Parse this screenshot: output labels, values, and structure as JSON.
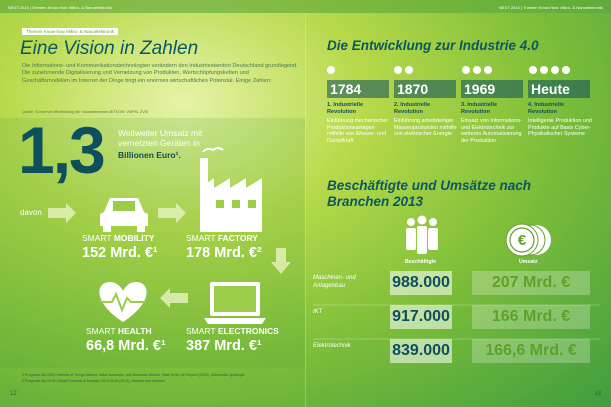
{
  "header": {
    "left": "NEXT 2014 | Themen Know-How: Mikro- & Nanoelektronik",
    "right": "NEXT 2014 | Themen Know-How: Mikro- & Nanoelektronik"
  },
  "left_page": {
    "tag": "Themen Know-how Mikro- & Nanoelektronik",
    "title": "Eine Vision in Zahlen",
    "intro": "Die Informations- und Kommunikationstechnologien verändern den Industriestandort Deutschland grundlegend. Die zunehmende Digitalisierung und Vernetzung von Produkten, Wertschöpfungsketten und Geschäftsmodellen im Internet der Dinge birgt ein enormes wirtschaftliches Potenzial. Einige Zahlen:",
    "source": "Quelle: Sonderveröffentlichung der Industriemedien BITKOM, VMPM, ZVEI",
    "big_number": "1,3",
    "big_text": "Weltweiter Umsatz mit vernetzten Geräten in",
    "big_text_bold": "Billionen Euro¹.",
    "davon": "davon",
    "segments": [
      {
        "label_light": "SMART",
        "label_bold": "MOBILITY",
        "value": "152 Mrd. €¹"
      },
      {
        "label_light": "SMART",
        "label_bold": "FACTORY",
        "value": "178 Mrd. €²"
      },
      {
        "label_light": "SMART",
        "label_bold": "HEALTH",
        "value": "66,8 Mrd. €¹"
      },
      {
        "label_light": "SMART",
        "label_bold": "ELECTRONICS",
        "value": "387 Mrd. €¹"
      }
    ],
    "footnotes": [
      "1   Prognose bis 2020: Internet of Things Market, Value Networks, and Business Models: State of the Art Report (2013), Universität Jyväskylä",
      "2   Prognose bis 2018: Global Forecast & Analysis 2013-2018 (2013), Markets and Markets"
    ],
    "page_number": "12"
  },
  "right_page": {
    "title": "Die Entwicklung zur Industrie 4.0",
    "stages": [
      {
        "year": "1784",
        "title": "1. Industrielle Revolution",
        "text": "Einführung mechanischer Produktionsanlagen mithilfe von Wasser- und Dampfkraft"
      },
      {
        "year": "1870",
        "title": "2. Industrielle Revolution",
        "text": "Einführung arbeitsteiliger Massenproduktion mithilfe von elektrischer Energie"
      },
      {
        "year": "1969",
        "title": "3. Industrielle Revolution",
        "text": "Einsatz von Informations- und Elektrotechnik zur weiteren Automatisierung der Produktion"
      },
      {
        "year": "Heute",
        "title": "4. Industrielle Revolution",
        "text": "Intelligente Produktion und Produkte auf Basis Cyber-Physikalischer Systeme"
      }
    ],
    "table_title": "Beschäftigte und Umsätze nach Branchen 2013",
    "table": {
      "headers": [
        "Beschäftigte",
        "Umsatz"
      ],
      "rows": [
        [
          "Maschinen- und Anlagenbau",
          "988.000",
          "207 Mrd. €"
        ],
        [
          "IKT",
          "917.000",
          "166 Mrd. €"
        ],
        [
          "Elektrotechnik",
          "839.000",
          "166,6 Mrd. €"
        ]
      ]
    },
    "page_number": "13"
  }
}
